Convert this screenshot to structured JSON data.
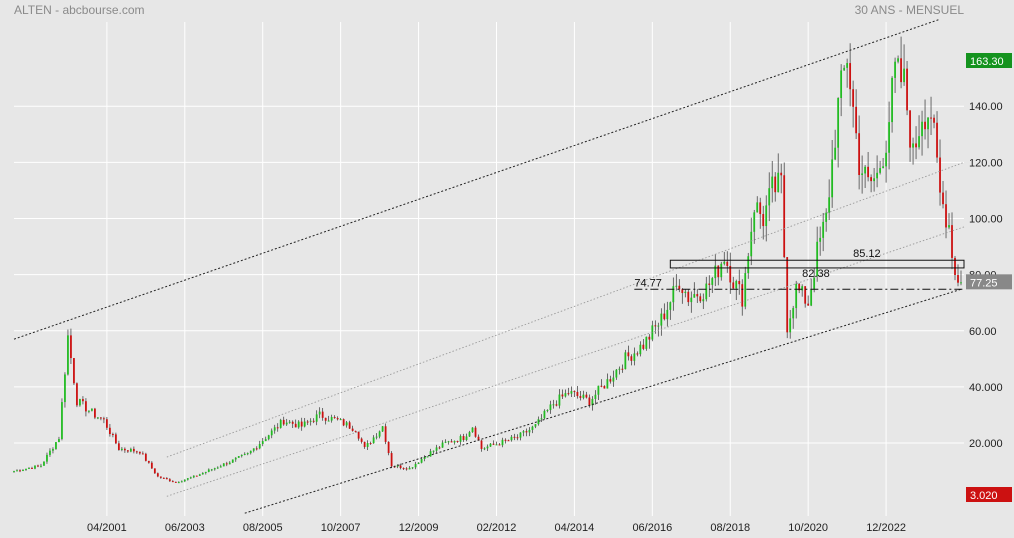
{
  "header": {
    "left": "ALTEN - abcbourse.com",
    "right": "30 ANS - MENSUEL"
  },
  "colors": {
    "up": "#22bb22",
    "down": "#cc1111",
    "bg": "#e7e7e7",
    "grid": "#ffffff",
    "tag_high": "#14931e",
    "tag_low": "#cc1111",
    "tag_last": "#888888"
  },
  "chart_data": {
    "type": "candlestick",
    "title": "",
    "xlabel": "",
    "ylabel": "",
    "ylim": [
      -6,
      170
    ],
    "y_ticks": [
      "20.000",
      "40.000",
      "60.00",
      "80.00",
      "100.00",
      "120.00",
      "140.00"
    ],
    "y_tick_values": [
      20,
      40,
      60,
      80,
      100,
      120,
      140
    ],
    "x_range": [
      "1998-09",
      "2025-02"
    ],
    "x_ticks": [
      "04/2001",
      "06/2003",
      "08/2005",
      "10/2007",
      "12/2009",
      "02/2012",
      "04/2014",
      "06/2016",
      "08/2018",
      "10/2020",
      "12/2022"
    ],
    "grid": true,
    "price_tags": [
      {
        "label": "163.30",
        "value": 163.3,
        "kind": "high"
      },
      {
        "label": "77.25",
        "value": 77.25,
        "kind": "last"
      },
      {
        "label": "3.020",
        "value": 3.02,
        "kind": "low"
      }
    ],
    "annotations": [
      {
        "label": "85.12",
        "value": 85.12
      },
      {
        "label": "82.38",
        "value": 82.38
      },
      {
        "label": "74.77",
        "value": 74.77
      }
    ],
    "price_path": [
      [
        "1998-09",
        10
      ],
      [
        "1999-06",
        12
      ],
      [
        "1999-12",
        22
      ],
      [
        "2000-03",
        58
      ],
      [
        "2000-06",
        35
      ],
      [
        "2000-12",
        30
      ],
      [
        "2001-03",
        28
      ],
      [
        "2001-08",
        18
      ],
      [
        "2002-03",
        17
      ],
      [
        "2002-09",
        8
      ],
      [
        "2003-03",
        6
      ],
      [
        "2003-09",
        8
      ],
      [
        "2004-06",
        12
      ],
      [
        "2005-03",
        16
      ],
      [
        "2005-09",
        22
      ],
      [
        "2006-03",
        28
      ],
      [
        "2006-09",
        26
      ],
      [
        "2007-03",
        30
      ],
      [
        "2007-09",
        28
      ],
      [
        "2008-03",
        25
      ],
      [
        "2008-06",
        18
      ],
      [
        "2008-12",
        26
      ],
      [
        "2009-03",
        12
      ],
      [
        "2009-09",
        11
      ],
      [
        "2010-03",
        16
      ],
      [
        "2010-09",
        20
      ],
      [
        "2011-03",
        22
      ],
      [
        "2011-06",
        26
      ],
      [
        "2011-09",
        18
      ],
      [
        "2012-03",
        20
      ],
      [
        "2012-09",
        22
      ],
      [
        "2013-03",
        26
      ],
      [
        "2013-09",
        34
      ],
      [
        "2014-02",
        38
      ],
      [
        "2014-09",
        35
      ],
      [
        "2015-03",
        42
      ],
      [
        "2015-09",
        50
      ],
      [
        "2016-03",
        55
      ],
      [
        "2016-09",
        64
      ],
      [
        "2017-01",
        73
      ],
      [
        "2017-03",
        78
      ],
      [
        "2017-06",
        72
      ],
      [
        "2017-12",
        75
      ],
      [
        "2018-03",
        80
      ],
      [
        "2018-06",
        87
      ],
      [
        "2018-09",
        78
      ],
      [
        "2018-12",
        72
      ],
      [
        "2019-04",
        105
      ],
      [
        "2019-07",
        100
      ],
      [
        "2019-10",
        110
      ],
      [
        "2020-01",
        112
      ],
      [
        "2020-03",
        62
      ],
      [
        "2020-06",
        75
      ],
      [
        "2020-10",
        70
      ],
      [
        "2021-01",
        88
      ],
      [
        "2021-04",
        100
      ],
      [
        "2021-08",
        140
      ],
      [
        "2021-11",
        158
      ],
      [
        "2022-03",
        120
      ],
      [
        "2022-06",
        112
      ],
      [
        "2022-09",
        115
      ],
      [
        "2022-12",
        128
      ],
      [
        "2023-03",
        152
      ],
      [
        "2023-06",
        148
      ],
      [
        "2023-09",
        122
      ],
      [
        "2023-12",
        138
      ],
      [
        "2024-03",
        138
      ],
      [
        "2024-06",
        108
      ],
      [
        "2024-09",
        98
      ],
      [
        "2024-11",
        80
      ],
      [
        "2025-01",
        77.25
      ]
    ],
    "trend_lines": [
      {
        "style": "dotted-dark",
        "from": [
          "1998-09",
          57
        ],
        "to": [
          "2024-06",
          171
        ]
      },
      {
        "style": "dotted-dark",
        "from": [
          "2005-02",
          -5
        ],
        "to": [
          "2025-01",
          74.77
        ]
      },
      {
        "style": "dotted-light",
        "from": [
          "2002-12",
          15
        ],
        "to": [
          "2025-02",
          120
        ]
      },
      {
        "style": "dotted-light",
        "from": [
          "2002-12",
          1
        ],
        "to": [
          "2025-02",
          97
        ]
      }
    ],
    "horizontal_lines": [
      {
        "style": "dashdot",
        "value": 74.77,
        "from": "2015-12",
        "to": "2025-02"
      }
    ],
    "boxes": [
      {
        "from": "2016-12",
        "to": "2025-02",
        "top": 85.12,
        "bottom": 82.38
      }
    ]
  }
}
